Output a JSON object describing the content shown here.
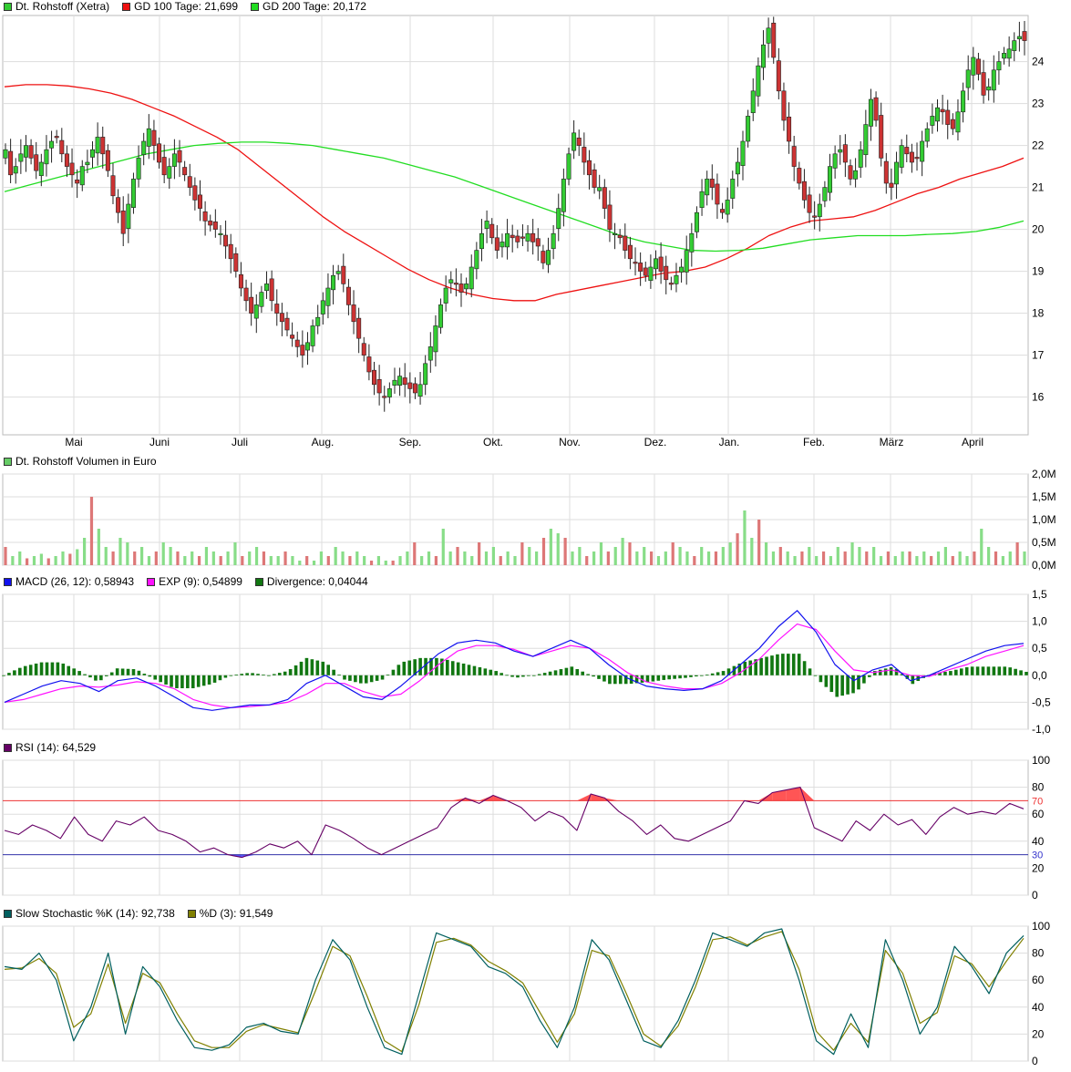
{
  "colors": {
    "up": "#33cc33",
    "down": "#cc3333",
    "gd100": "#ee1111",
    "gd200": "#22dd22",
    "macd": "#1111ee",
    "signal": "#ff11ff",
    "divergence": "#117711",
    "rsi": "#660066",
    "stoch_k": "#005f5f",
    "stoch_d": "#808000",
    "grid": "#dddddd",
    "vol_up": "#88dd88",
    "vol_down": "#dd7777"
  },
  "legends": {
    "price": [
      {
        "label": "Dt. Rohstoff (Xetra)",
        "color": "#33cc33"
      },
      {
        "label": "GD 100 Tage: 21,699",
        "color": "#ee1111"
      },
      {
        "label": "GD 200 Tage: 20,172",
        "color": "#22dd22"
      }
    ],
    "volume": [
      {
        "label": "Dt. Rohstoff Volumen in Euro",
        "color": "#66cc66"
      }
    ],
    "macd": [
      {
        "label": "MACD (26, 12): 0,58943",
        "color": "#1111ee"
      },
      {
        "label": "EXP (9): 0,54899",
        "color": "#ff11ff"
      },
      {
        "label": "Divergence: 0,04044",
        "color": "#117711"
      }
    ],
    "rsi": [
      {
        "label": "RSI (14): 64,529",
        "color": "#660066"
      }
    ],
    "stoch": [
      {
        "label": "Slow Stochastic %K (14): 92,738",
        "color": "#005f5f"
      },
      {
        "label": "%D (3): 91,549",
        "color": "#808000"
      }
    ]
  },
  "chart_data": [
    {
      "type": "candlestick",
      "name": "price",
      "x_labels": [
        "Mai",
        "Juni",
        "Juli",
        "Aug.",
        "Sep.",
        "Okt.",
        "Nov.",
        "Dez.",
        "Jan.",
        "Feb.",
        "März",
        "April"
      ],
      "y_ticks": [
        "16",
        "17",
        "18",
        "19",
        "20",
        "21",
        "22",
        "23",
        "24"
      ],
      "ylim": [
        15.1,
        25.1
      ],
      "closes": [
        21.9,
        21.3,
        21.5,
        21.8,
        22.0,
        21.7,
        21.4,
        21.6,
        21.9,
        22.1,
        22.2,
        21.8,
        21.5,
        21.3,
        21.1,
        21.5,
        21.6,
        21.9,
        22.2,
        21.8,
        21.4,
        20.8,
        20.4,
        19.9,
        20.6,
        21.2,
        21.7,
        22.1,
        22.4,
        22.0,
        21.6,
        21.3,
        21.5,
        21.8,
        21.6,
        21.3,
        21.0,
        20.7,
        20.5,
        20.2,
        20.1,
        20.0,
        19.9,
        19.6,
        19.3,
        19.0,
        18.6,
        18.3,
        18.0,
        18.2,
        18.5,
        18.7,
        18.3,
        18.0,
        17.8,
        17.6,
        17.4,
        17.2,
        17.0,
        17.3,
        17.7,
        17.9,
        18.3,
        18.6,
        18.9,
        19.0,
        18.7,
        18.2,
        17.8,
        17.4,
        17.0,
        16.6,
        16.3,
        16.1,
        16.0,
        16.2,
        16.4,
        16.5,
        16.3,
        16.2,
        16.1,
        16.3,
        16.8,
        17.2,
        17.7,
        18.2,
        18.6,
        18.8,
        18.7,
        18.5,
        18.7,
        19.1,
        19.5,
        19.9,
        20.2,
        19.8,
        19.5,
        19.7,
        19.9,
        19.8,
        19.7,
        19.8,
        19.9,
        19.7,
        19.6,
        19.2,
        19.5,
        19.9,
        20.5,
        21.2,
        21.8,
        22.3,
        22.0,
        21.6,
        21.3,
        21.0,
        21.0,
        20.5,
        20.0,
        19.9,
        19.8,
        19.5,
        19.3,
        19.2,
        19.0,
        18.9,
        19.1,
        19.3,
        19.0,
        18.8,
        18.7,
        18.9,
        19.1,
        19.5,
        19.9,
        20.4,
        20.9,
        21.2,
        21.0,
        20.6,
        20.4,
        20.7,
        21.2,
        21.6,
        22.1,
        22.7,
        23.3,
        23.9,
        24.4,
        24.8,
        24.1,
        23.3,
        22.6,
        22.1,
        21.5,
        21.1,
        20.7,
        20.4,
        20.3,
        20.6,
        21.0,
        21.5,
        21.8,
        21.9,
        21.6,
        21.2,
        21.4,
        21.9,
        22.5,
        23.1,
        22.6,
        21.7,
        21.1,
        21.0,
        21.6,
        22.0,
        21.8,
        21.6,
        21.7,
        22.1,
        22.4,
        22.7,
        22.9,
        22.8,
        22.5,
        22.4,
        22.8,
        23.3,
        23.8,
        24.1,
        23.7,
        23.2,
        23.4,
        23.8,
        24.0,
        24.2,
        24.3,
        24.5,
        24.6,
        24.5
      ]
    },
    {
      "type": "line",
      "name": "GD 100 Tage",
      "values": [
        23.4,
        23.45,
        23.45,
        23.42,
        23.35,
        23.25,
        23.1,
        22.9,
        22.7,
        22.45,
        22.2,
        21.9,
        21.5,
        21.1,
        20.7,
        20.3,
        19.95,
        19.65,
        19.35,
        19.05,
        18.8,
        18.6,
        18.45,
        18.35,
        18.3,
        18.3,
        18.45,
        18.55,
        18.65,
        18.75,
        18.85,
        18.95,
        19.0,
        19.1,
        19.3,
        19.55,
        19.85,
        20.05,
        20.2,
        20.25,
        20.3,
        20.45,
        20.65,
        20.85,
        21.0,
        21.2,
        21.35,
        21.5,
        21.7
      ]
    },
    {
      "type": "line",
      "name": "GD 200 Tage",
      "values": [
        20.9,
        21.05,
        21.2,
        21.35,
        21.5,
        21.65,
        21.8,
        21.9,
        22.0,
        22.05,
        22.08,
        22.08,
        22.05,
        22.0,
        21.9,
        21.8,
        21.7,
        21.55,
        21.4,
        21.25,
        21.05,
        20.85,
        20.65,
        20.45,
        20.25,
        20.05,
        19.85,
        19.7,
        19.6,
        19.5,
        19.48,
        19.5,
        19.55,
        19.65,
        19.75,
        19.8,
        19.85,
        19.85,
        19.85,
        19.88,
        19.9,
        19.95,
        20.05,
        20.2
      ]
    },
    {
      "type": "bar",
      "name": "Dt. Rohstoff Volumen in Euro",
      "y_ticks": [
        "0,0M",
        "0,5M",
        "1,0M",
        "1,5M",
        "2,0M"
      ],
      "ylim": [
        0,
        2.0
      ],
      "values": [
        0.4,
        0.2,
        0.3,
        0.15,
        0.2,
        0.25,
        0.15,
        0.2,
        0.3,
        0.25,
        0.35,
        0.6,
        1.5,
        0.8,
        0.4,
        0.3,
        0.6,
        0.5,
        0.3,
        0.4,
        0.2,
        0.3,
        0.5,
        0.4,
        0.3,
        0.2,
        0.3,
        0.2,
        0.4,
        0.3,
        0.2,
        0.3,
        0.5,
        0.2,
        0.3,
        0.4,
        0.3,
        0.2,
        0.2,
        0.3,
        0.2,
        0.1,
        0.2,
        0.1,
        0.3,
        0.2,
        0.4,
        0.3,
        0.2,
        0.3,
        0.2,
        0.1,
        0.2,
        0.1,
        0.1,
        0.2,
        0.3,
        0.5,
        0.2,
        0.3,
        0.2,
        0.8,
        0.3,
        0.4,
        0.3,
        0.2,
        0.5,
        0.3,
        0.4,
        0.2,
        0.3,
        0.2,
        0.5,
        0.4,
        0.3,
        0.6,
        0.8,
        0.7,
        0.6,
        0.3,
        0.4,
        0.2,
        0.3,
        0.5,
        0.3,
        0.4,
        0.6,
        0.5,
        0.3,
        0.4,
        0.3,
        0.2,
        0.3,
        0.5,
        0.4,
        0.3,
        0.2,
        0.4,
        0.3,
        0.3,
        0.4,
        0.5,
        0.7,
        1.2,
        0.6,
        1.0,
        0.5,
        0.3,
        0.4,
        0.3,
        0.2,
        0.3,
        0.4,
        0.2,
        0.3,
        0.2,
        0.4,
        0.3,
        0.5,
        0.4,
        0.3,
        0.4,
        0.2,
        0.3,
        0.2,
        0.3,
        0.3,
        0.2,
        0.3,
        0.2,
        0.3,
        0.4,
        0.2,
        0.3,
        0.2,
        0.3,
        0.8,
        0.4,
        0.3,
        0.2,
        0.3,
        0.5,
        0.3
      ]
    },
    {
      "type": "line",
      "name": "MACD",
      "y_ticks": [
        "-1,0",
        "-0,5",
        "0,0",
        "0,5",
        "1,0",
        "1,5"
      ],
      "ylim": [
        -1.0,
        1.5
      ],
      "macd": [
        -0.5,
        -0.35,
        -0.2,
        -0.1,
        -0.15,
        -0.3,
        -0.1,
        -0.05,
        -0.2,
        -0.4,
        -0.6,
        -0.65,
        -0.6,
        -0.55,
        -0.55,
        -0.45,
        -0.15,
        0.0,
        -0.2,
        -0.4,
        -0.45,
        -0.2,
        0.1,
        0.4,
        0.6,
        0.65,
        0.6,
        0.45,
        0.35,
        0.5,
        0.65,
        0.5,
        0.2,
        -0.05,
        -0.2,
        -0.25,
        -0.28,
        -0.25,
        -0.1,
        0.2,
        0.5,
        0.9,
        1.2,
        0.8,
        0.2,
        -0.1,
        0.1,
        0.2,
        -0.1,
        0.0,
        0.15,
        0.3,
        0.45,
        0.55,
        0.59
      ],
      "signal": [
        -0.5,
        -0.45,
        -0.35,
        -0.25,
        -0.2,
        -0.22,
        -0.18,
        -0.12,
        -0.15,
        -0.25,
        -0.45,
        -0.55,
        -0.6,
        -0.58,
        -0.55,
        -0.5,
        -0.35,
        -0.15,
        -0.15,
        -0.3,
        -0.4,
        -0.35,
        -0.1,
        0.2,
        0.45,
        0.55,
        0.55,
        0.48,
        0.35,
        0.45,
        0.55,
        0.5,
        0.3,
        0.05,
        -0.12,
        -0.2,
        -0.25,
        -0.25,
        -0.15,
        0.05,
        0.3,
        0.65,
        0.95,
        0.85,
        0.45,
        0.1,
        0.05,
        0.1,
        0.0,
        -0.02,
        0.1,
        0.2,
        0.35,
        0.45,
        0.55
      ]
    },
    {
      "type": "line",
      "name": "RSI",
      "y_ticks": [
        "0",
        "20",
        "40",
        "60",
        "80",
        "100"
      ],
      "ylim": [
        0,
        100
      ],
      "reference_lines": [
        70,
        30
      ],
      "values": [
        48,
        45,
        52,
        48,
        42,
        58,
        45,
        40,
        55,
        52,
        58,
        48,
        45,
        40,
        32,
        35,
        30,
        28,
        32,
        38,
        35,
        40,
        30,
        52,
        48,
        42,
        35,
        30,
        35,
        40,
        45,
        50,
        65,
        72,
        68,
        74,
        70,
        65,
        55,
        62,
        58,
        48,
        75,
        72,
        62,
        55,
        45,
        52,
        42,
        40,
        45,
        50,
        55,
        70,
        68,
        76,
        78,
        80,
        50,
        45,
        40,
        55,
        48,
        60,
        52,
        56,
        45,
        58,
        65,
        60,
        62,
        60,
        68,
        64
      ]
    },
    {
      "type": "line",
      "name": "Slow Stochastic",
      "y_ticks": [
        "0",
        "20",
        "40",
        "60",
        "80",
        "100"
      ],
      "ylim": [
        0,
        100
      ],
      "k": [
        70,
        68,
        80,
        60,
        15,
        40,
        80,
        20,
        70,
        55,
        30,
        10,
        8,
        12,
        25,
        28,
        22,
        20,
        60,
        90,
        75,
        40,
        10,
        5,
        50,
        95,
        90,
        85,
        70,
        65,
        55,
        30,
        10,
        40,
        90,
        75,
        45,
        15,
        10,
        30,
        60,
        95,
        90,
        85,
        95,
        98,
        60,
        15,
        5,
        35,
        10,
        90,
        60,
        20,
        40,
        85,
        70,
        50,
        80,
        93
      ],
      "d": [
        68,
        69,
        76,
        65,
        25,
        35,
        72,
        28,
        65,
        58,
        35,
        15,
        10,
        10,
        22,
        27,
        24,
        21,
        52,
        85,
        78,
        48,
        15,
        7,
        42,
        88,
        91,
        86,
        74,
        67,
        58,
        36,
        14,
        35,
        82,
        78,
        50,
        20,
        11,
        26,
        55,
        90,
        92,
        86,
        92,
        96,
        68,
        22,
        8,
        28,
        14,
        82,
        65,
        28,
        36,
        78,
        72,
        55,
        74,
        91
      ]
    }
  ]
}
